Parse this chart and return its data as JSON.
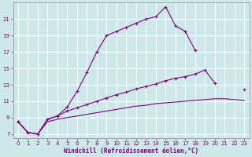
{
  "xlabel": "Windchill (Refroidissement éolien,°C)",
  "bg_color": "#cce8e8",
  "grid_color": "#ffffff",
  "line_color": "#800080",
  "xlim": [
    -0.5,
    23.5
  ],
  "ylim": [
    6.5,
    23.0
  ],
  "xticks": [
    0,
    1,
    2,
    3,
    4,
    5,
    6,
    7,
    8,
    9,
    10,
    11,
    12,
    13,
    14,
    15,
    16,
    17,
    18,
    19,
    20,
    21,
    22,
    23
  ],
  "yticks": [
    7,
    9,
    11,
    13,
    15,
    17,
    19,
    21
  ],
  "line_upper": {
    "x": [
      0,
      1,
      2,
      3,
      4,
      5,
      6,
      7,
      8,
      9,
      10,
      11,
      12,
      13,
      14,
      15,
      16,
      17,
      18
    ],
    "y": [
      8.5,
      7.2,
      7.0,
      8.8,
      9.2,
      10.3,
      12.2,
      14.5,
      17.0,
      19.0,
      19.5,
      20.0,
      20.5,
      21.0,
      21.3,
      22.5,
      20.2,
      19.5,
      17.2
    ]
  },
  "line_middle": {
    "x": [
      0,
      1,
      2,
      3,
      4,
      5,
      6,
      7,
      8,
      9,
      10,
      11,
      12,
      13,
      14,
      15,
      16,
      17,
      18,
      19,
      20,
      21,
      22,
      23
    ],
    "y": [
      8.5,
      7.2,
      7.0,
      8.8,
      9.2,
      9.8,
      10.2,
      10.6,
      11.0,
      11.4,
      11.8,
      12.1,
      12.5,
      12.8,
      13.1,
      13.5,
      13.8,
      14.0,
      14.3,
      14.8,
      13.2,
      null,
      null,
      12.4
    ]
  },
  "line_lower": {
    "x": [
      0,
      1,
      2,
      3,
      4,
      5,
      6,
      7,
      8,
      9,
      10,
      11,
      12,
      13,
      14,
      15,
      16,
      17,
      18,
      19,
      20,
      21,
      22,
      23
    ],
    "y": [
      8.5,
      7.2,
      7.0,
      8.5,
      8.8,
      9.0,
      9.2,
      9.4,
      9.6,
      9.8,
      10.0,
      10.2,
      10.4,
      10.5,
      10.7,
      10.8,
      10.9,
      11.0,
      11.1,
      11.2,
      11.3,
      11.3,
      11.2,
      11.1
    ]
  }
}
